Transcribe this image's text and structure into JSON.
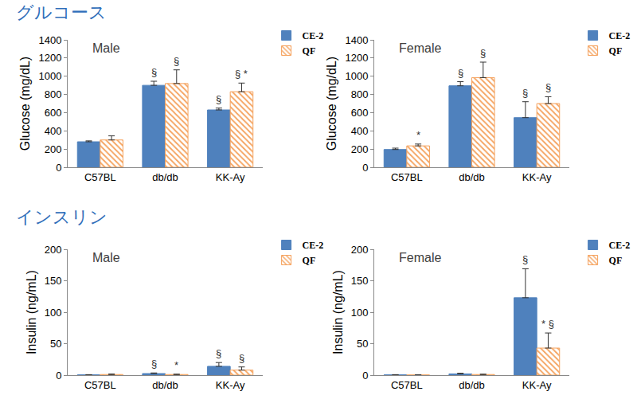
{
  "headings": [
    "グルコース",
    "インスリン"
  ],
  "chart_data": [
    {
      "type": "bar",
      "title": "Male",
      "y_label": "Glucose (mg/dL)",
      "categories": [
        "C57BL",
        "db/db",
        "KK-Ay"
      ],
      "series": [
        {
          "name": "CE-2",
          "color": "#4f81bd",
          "values": [
            280,
            900,
            630
          ],
          "errors": [
            10,
            45,
            20
          ],
          "marks": [
            null,
            "§",
            "§"
          ]
        },
        {
          "name": "QF",
          "color": "#f5a25d",
          "marker": "hatch",
          "values": [
            300,
            920,
            830
          ],
          "errors": [
            45,
            150,
            95
          ],
          "marks": [
            null,
            "§",
            "§ *"
          ]
        }
      ],
      "ylim": [
        0,
        1400
      ],
      "yticks": [
        0,
        200,
        400,
        600,
        800,
        1000,
        1200,
        1400
      ],
      "legend": "right"
    },
    {
      "type": "bar",
      "title": "Female",
      "y_label": "Glucose (mg/dL)",
      "categories": [
        "C57BL",
        "db/db",
        "KK-Ay"
      ],
      "series": [
        {
          "name": "CE-2",
          "color": "#4f81bd",
          "values": [
            195,
            895,
            545
          ],
          "errors": [
            15,
            45,
            175
          ],
          "marks": [
            null,
            "§",
            "§"
          ]
        },
        {
          "name": "QF",
          "color": "#f5a25d",
          "marker": "hatch",
          "values": [
            235,
            985,
            700
          ],
          "errors": [
            20,
            170,
            75
          ],
          "marks": [
            "*",
            "§",
            "§"
          ]
        }
      ],
      "ylim": [
        0,
        1400
      ],
      "yticks": [
        0,
        200,
        400,
        600,
        800,
        1000,
        1200,
        1400
      ],
      "legend": "right"
    },
    {
      "type": "bar",
      "title": "Male",
      "y_label": "Insulin (ng/mL)",
      "categories": [
        "C57BL",
        "db/db",
        "KK-Ay"
      ],
      "series": [
        {
          "name": "CE-2",
          "color": "#4f81bd",
          "values": [
            0.5,
            2.5,
            14
          ],
          "errors": [
            0.3,
            1,
            6
          ],
          "marks": [
            null,
            "§",
            "§"
          ]
        },
        {
          "name": "QF",
          "color": "#f5a25d",
          "marker": "hatch",
          "values": [
            1,
            1,
            8
          ],
          "errors": [
            0.8,
            0.5,
            5
          ],
          "marks": [
            null,
            "*",
            "§"
          ]
        }
      ],
      "ylim": [
        0,
        200
      ],
      "yticks": [
        0,
        50,
        100,
        150,
        200
      ],
      "legend": "right"
    },
    {
      "type": "bar",
      "title": "Female",
      "y_label": "Insulin (ng/mL)",
      "categories": [
        "C57BL",
        "db/db",
        "KK-Ay"
      ],
      "series": [
        {
          "name": "CE-2",
          "color": "#4f81bd",
          "values": [
            0.5,
            2,
            123
          ],
          "errors": [
            0.3,
            1,
            46
          ],
          "marks": [
            null,
            null,
            "§"
          ]
        },
        {
          "name": "QF",
          "color": "#f5a25d",
          "marker": "hatch",
          "values": [
            0.3,
            1,
            43
          ],
          "errors": [
            0.2,
            0.5,
            24
          ],
          "marks": [
            null,
            null,
            "* §"
          ]
        }
      ],
      "ylim": [
        0,
        200
      ],
      "yticks": [
        0,
        50,
        100,
        150,
        200
      ],
      "legend": "right"
    }
  ]
}
